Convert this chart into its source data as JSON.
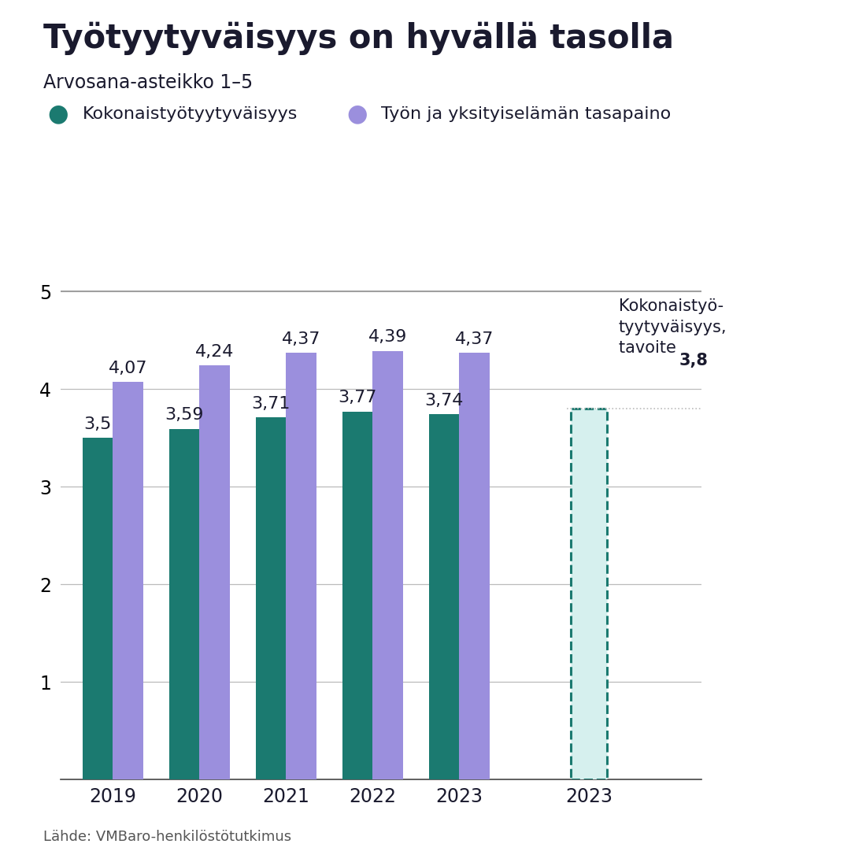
{
  "title": "Työtyytyväisyys on hyvällä tasolla",
  "subtitle": "Arvosana-asteikko 1–5",
  "legend1_label": "Kokonaistyötyytyväisyys",
  "legend2_label": "Työn ja yksityiselämän tasapaino",
  "years": [
    "2019",
    "2020",
    "2021",
    "2022",
    "2023"
  ],
  "kokonais_values": [
    3.5,
    3.59,
    3.71,
    3.77,
    3.74
  ],
  "tasapaino_values": [
    4.07,
    4.24,
    4.37,
    4.39,
    4.37
  ],
  "kokonais_color": "#1b7a70",
  "tasapaino_color": "#9b8fdd",
  "target_value": 3.8,
  "target_bar_color": "#d6f0ee",
  "target_bar_edge_color": "#1b7a70",
  "ylim_min": 0,
  "ylim_max": 5.5,
  "yticks": [
    1,
    2,
    3,
    4,
    5
  ],
  "source_text": "Lähde: VMBaro-henkilöstötutkimus",
  "bar_width": 0.35,
  "background_color": "#ffffff",
  "grid_color": "#bbbbbb",
  "text_color": "#1a1a2e",
  "label_fontsize": 16,
  "tick_fontsize": 17,
  "title_fontsize": 30,
  "subtitle_fontsize": 17,
  "legend_fontsize": 16,
  "source_fontsize": 13
}
